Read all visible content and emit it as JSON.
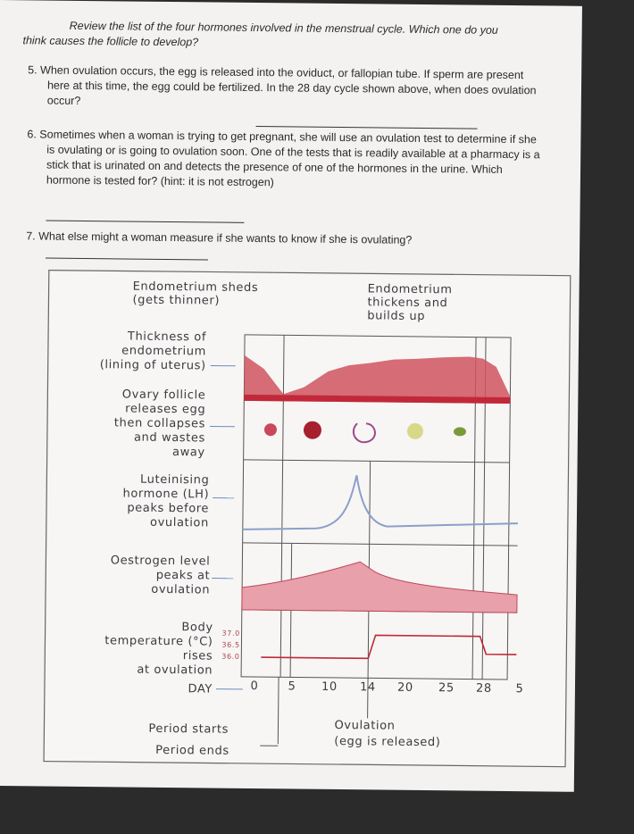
{
  "worksheet": {
    "intro": "Review the list of the four hormones involved in the menstrual cycle. Which one do you think causes the follicle to develop?",
    "questions": [
      "5. When ovulation occurs, the egg is released into the oviduct, or fallopian tube. If sperm are present here at this time, the egg could be fertilized. In the 28 day cycle shown above, when does ovulation occur?",
      "6. Sometimes when a woman is trying to get pregnant, she will use an ovulation test to determine if she is ovulating or is going to ovulation soon. One of the tests that is readily available at a pharmacy is a stick that is urinated on and detects the presence of one of the hormones in the urine. Which hormone is tested for? (hint: it is not estrogen)",
      "7. What else might a woman measure if she wants to know if she is ovulating?"
    ]
  },
  "diagram": {
    "header_left": [
      "Endometrium sheds",
      "(gets thinner)"
    ],
    "header_right": [
      "Endometrium",
      "thickens and",
      "builds up"
    ],
    "rows": [
      [
        "Thickness of",
        "endometrium",
        "(lining of uterus)"
      ],
      [
        "Ovary follicle",
        "releases egg",
        "then collapses",
        "and wastes",
        "away"
      ],
      [
        "Luteinising",
        "hormone (LH)",
        "peaks before",
        "ovulation"
      ],
      [
        "Oestrogen level",
        "peaks at",
        "ovulation"
      ],
      [
        "Body",
        "temperature (°C)",
        "rises",
        "at ovulation"
      ]
    ],
    "temperature_scale": [
      "37.0",
      "36.5",
      "36.0"
    ],
    "day_label": "DAY",
    "days": [
      "0",
      "5",
      "10",
      "14",
      "20",
      "25",
      "28",
      "5"
    ],
    "footer_left": [
      "Period starts",
      "Period ends"
    ],
    "footer_right": [
      "Ovulation",
      "(egg is released)"
    ]
  }
}
